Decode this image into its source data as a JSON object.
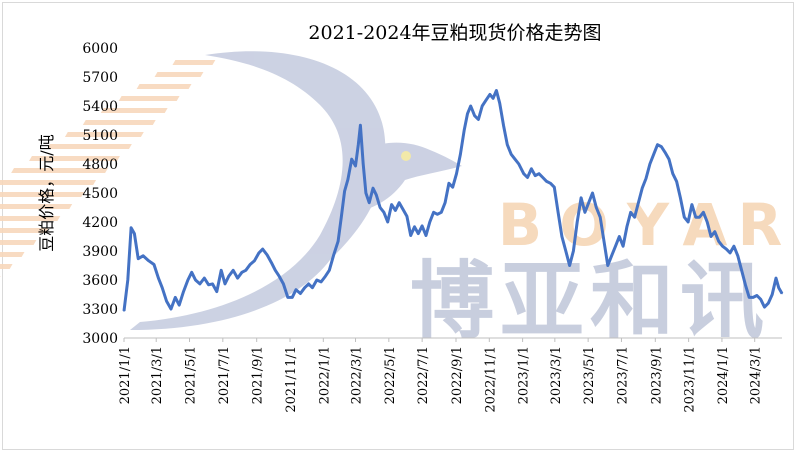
{
  "chart_data": {
    "type": "line",
    "title": "2021-2024年豆粕现货价格走势图",
    "xlabel": "",
    "ylabel": "豆粕价格，元/吨",
    "ylim": [
      3000,
      6000
    ],
    "yticks": [
      3000,
      3300,
      3600,
      3900,
      4200,
      4500,
      4800,
      5100,
      5400,
      5700,
      6000
    ],
    "xlim": [
      "2021-01-01",
      "2024-04-20"
    ],
    "xtick_labels": [
      "2021/1/1",
      "2021/3/1",
      "2021/5/1",
      "2021/7/1",
      "2021/9/1",
      "2021/11/1",
      "2022/1/1",
      "2022/3/1",
      "2022/5/1",
      "2022/7/1",
      "2022/9/1",
      "2022/11/1",
      "2023/1/1",
      "2023/3/1",
      "2023/5/1",
      "2023/7/1",
      "2023/9/1",
      "2023/11/1",
      "2024/1/1",
      "2024/3/1"
    ],
    "grid": false,
    "legend": "none",
    "line_color": "#4472c4",
    "series": [
      {
        "name": "",
        "points": [
          [
            "2021-01-01",
            3280
          ],
          [
            "2021-01-08",
            3600
          ],
          [
            "2021-01-14",
            4140
          ],
          [
            "2021-01-20",
            4080
          ],
          [
            "2021-01-27",
            3820
          ],
          [
            "2021-02-05",
            3850
          ],
          [
            "2021-02-15",
            3800
          ],
          [
            "2021-02-25",
            3760
          ],
          [
            "2021-03-05",
            3620
          ],
          [
            "2021-03-12",
            3520
          ],
          [
            "2021-03-20",
            3380
          ],
          [
            "2021-03-28",
            3300
          ],
          [
            "2021-04-05",
            3420
          ],
          [
            "2021-04-12",
            3340
          ],
          [
            "2021-04-20",
            3480
          ],
          [
            "2021-04-28",
            3600
          ],
          [
            "2021-05-05",
            3680
          ],
          [
            "2021-05-12",
            3600
          ],
          [
            "2021-05-20",
            3560
          ],
          [
            "2021-05-28",
            3620
          ],
          [
            "2021-06-05",
            3550
          ],
          [
            "2021-06-12",
            3560
          ],
          [
            "2021-06-20",
            3480
          ],
          [
            "2021-06-28",
            3700
          ],
          [
            "2021-07-05",
            3560
          ],
          [
            "2021-07-12",
            3640
          ],
          [
            "2021-07-20",
            3700
          ],
          [
            "2021-07-28",
            3620
          ],
          [
            "2021-08-05",
            3680
          ],
          [
            "2021-08-12",
            3700
          ],
          [
            "2021-08-20",
            3760
          ],
          [
            "2021-08-28",
            3800
          ],
          [
            "2021-09-05",
            3880
          ],
          [
            "2021-09-12",
            3920
          ],
          [
            "2021-09-20",
            3860
          ],
          [
            "2021-09-28",
            3780
          ],
          [
            "2021-10-05",
            3700
          ],
          [
            "2021-10-12",
            3640
          ],
          [
            "2021-10-20",
            3560
          ],
          [
            "2021-10-28",
            3420
          ],
          [
            "2021-11-05",
            3420
          ],
          [
            "2021-11-12",
            3500
          ],
          [
            "2021-11-20",
            3460
          ],
          [
            "2021-11-28",
            3520
          ],
          [
            "2021-12-05",
            3560
          ],
          [
            "2021-12-12",
            3520
          ],
          [
            "2021-12-20",
            3600
          ],
          [
            "2021-12-28",
            3580
          ],
          [
            "2022-01-05",
            3640
          ],
          [
            "2022-01-12",
            3700
          ],
          [
            "2022-01-20",
            3860
          ],
          [
            "2022-01-28",
            4000
          ],
          [
            "2022-02-03",
            4250
          ],
          [
            "2022-02-09",
            4520
          ],
          [
            "2022-02-15",
            4640
          ],
          [
            "2022-02-22",
            4850
          ],
          [
            "2022-03-01",
            4780
          ],
          [
            "2022-03-06",
            5000
          ],
          [
            "2022-03-10",
            5200
          ],
          [
            "2022-03-15",
            4800
          ],
          [
            "2022-03-20",
            4500
          ],
          [
            "2022-03-26",
            4400
          ],
          [
            "2022-04-02",
            4550
          ],
          [
            "2022-04-08",
            4480
          ],
          [
            "2022-04-15",
            4350
          ],
          [
            "2022-04-22",
            4300
          ],
          [
            "2022-04-29",
            4200
          ],
          [
            "2022-05-06",
            4380
          ],
          [
            "2022-05-13",
            4320
          ],
          [
            "2022-05-20",
            4400
          ],
          [
            "2022-05-27",
            4330
          ],
          [
            "2022-06-03",
            4260
          ],
          [
            "2022-06-10",
            4060
          ],
          [
            "2022-06-17",
            4150
          ],
          [
            "2022-06-24",
            4080
          ],
          [
            "2022-07-01",
            4160
          ],
          [
            "2022-07-08",
            4060
          ],
          [
            "2022-07-15",
            4200
          ],
          [
            "2022-07-22",
            4300
          ],
          [
            "2022-07-29",
            4280
          ],
          [
            "2022-08-05",
            4300
          ],
          [
            "2022-08-12",
            4400
          ],
          [
            "2022-08-19",
            4600
          ],
          [
            "2022-08-26",
            4560
          ],
          [
            "2022-09-02",
            4700
          ],
          [
            "2022-09-09",
            4900
          ],
          [
            "2022-09-16",
            5150
          ],
          [
            "2022-09-22",
            5320
          ],
          [
            "2022-09-28",
            5400
          ],
          [
            "2022-10-05",
            5300
          ],
          [
            "2022-10-12",
            5260
          ],
          [
            "2022-10-19",
            5400
          ],
          [
            "2022-10-26",
            5460
          ],
          [
            "2022-11-02",
            5520
          ],
          [
            "2022-11-08",
            5480
          ],
          [
            "2022-11-14",
            5560
          ],
          [
            "2022-11-20",
            5430
          ],
          [
            "2022-11-27",
            5200
          ],
          [
            "2022-12-04",
            5000
          ],
          [
            "2022-12-11",
            4900
          ],
          [
            "2022-12-18",
            4850
          ],
          [
            "2022-12-25",
            4800
          ],
          [
            "2023-01-03",
            4700
          ],
          [
            "2023-01-10",
            4660
          ],
          [
            "2023-01-17",
            4750
          ],
          [
            "2023-01-24",
            4680
          ],
          [
            "2023-01-31",
            4700
          ],
          [
            "2023-02-07",
            4660
          ],
          [
            "2023-02-14",
            4620
          ],
          [
            "2023-02-21",
            4600
          ],
          [
            "2023-02-28",
            4560
          ],
          [
            "2023-03-07",
            4300
          ],
          [
            "2023-03-14",
            4050
          ],
          [
            "2023-03-21",
            3900
          ],
          [
            "2023-03-28",
            3750
          ],
          [
            "2023-04-04",
            3900
          ],
          [
            "2023-04-11",
            4200
          ],
          [
            "2023-04-18",
            4450
          ],
          [
            "2023-04-25",
            4300
          ],
          [
            "2023-05-02",
            4400
          ],
          [
            "2023-05-09",
            4500
          ],
          [
            "2023-05-16",
            4350
          ],
          [
            "2023-05-23",
            4250
          ],
          [
            "2023-05-30",
            4000
          ],
          [
            "2023-06-06",
            3750
          ],
          [
            "2023-06-13",
            3850
          ],
          [
            "2023-06-20",
            3950
          ],
          [
            "2023-06-27",
            4050
          ],
          [
            "2023-07-04",
            3950
          ],
          [
            "2023-07-11",
            4150
          ],
          [
            "2023-07-18",
            4300
          ],
          [
            "2023-07-25",
            4250
          ],
          [
            "2023-08-01",
            4400
          ],
          [
            "2023-08-08",
            4550
          ],
          [
            "2023-08-15",
            4650
          ],
          [
            "2023-08-22",
            4800
          ],
          [
            "2023-08-29",
            4900
          ],
          [
            "2023-09-05",
            5000
          ],
          [
            "2023-09-12",
            4980
          ],
          [
            "2023-09-19",
            4920
          ],
          [
            "2023-09-26",
            4850
          ],
          [
            "2023-10-03",
            4700
          ],
          [
            "2023-10-10",
            4620
          ],
          [
            "2023-10-17",
            4450
          ],
          [
            "2023-10-24",
            4250
          ],
          [
            "2023-10-31",
            4200
          ],
          [
            "2023-11-07",
            4380
          ],
          [
            "2023-11-14",
            4250
          ],
          [
            "2023-11-21",
            4250
          ],
          [
            "2023-11-28",
            4300
          ],
          [
            "2023-12-05",
            4200
          ],
          [
            "2023-12-12",
            4050
          ],
          [
            "2023-12-19",
            4100
          ],
          [
            "2023-12-26",
            4000
          ],
          [
            "2024-01-02",
            3950
          ],
          [
            "2024-01-09",
            3920
          ],
          [
            "2024-01-16",
            3880
          ],
          [
            "2024-01-23",
            3950
          ],
          [
            "2024-01-30",
            3850
          ],
          [
            "2024-02-06",
            3700
          ],
          [
            "2024-02-13",
            3550
          ],
          [
            "2024-02-20",
            3420
          ],
          [
            "2024-02-27",
            3420
          ],
          [
            "2024-03-05",
            3440
          ],
          [
            "2024-03-12",
            3400
          ],
          [
            "2024-03-19",
            3320
          ],
          [
            "2024-03-26",
            3360
          ],
          [
            "2024-04-02",
            3450
          ],
          [
            "2024-04-09",
            3620
          ],
          [
            "2024-04-14",
            3520
          ],
          [
            "2024-04-20",
            3460
          ]
        ]
      }
    ]
  },
  "watermark": {
    "letters": [
      "B",
      "O",
      "Y",
      "A",
      "R"
    ],
    "name": "博亚和讯"
  }
}
